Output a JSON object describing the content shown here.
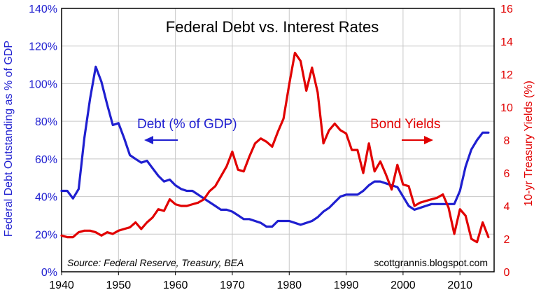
{
  "chart_data": {
    "type": "line",
    "title": "Federal Debt vs. Interest Rates",
    "source": "Source:  Federal Reserve, Treasury, BEA",
    "credit": "scottgrannis.blogspot.com",
    "xlabel": "",
    "ylabel_left": "Federal Debt Outstanding as % of GDP",
    "ylabel_right": "10-yr Treasury Yields (%)",
    "xlim": [
      1940,
      2016
    ],
    "ylim_left": [
      0,
      140
    ],
    "ylim_right": [
      0,
      16
    ],
    "x_ticks": [
      "1940",
      "1950",
      "1960",
      "1970",
      "1980",
      "1990",
      "2000",
      "2010"
    ],
    "x_tick_values": [
      1940,
      1950,
      1960,
      1970,
      1980,
      1990,
      2000,
      2010
    ],
    "y_left_ticks": [
      "0%",
      "20%",
      "40%",
      "60%",
      "80%",
      "100%",
      "120%",
      "140%"
    ],
    "y_left_tick_values": [
      0,
      20,
      40,
      60,
      80,
      100,
      120,
      140
    ],
    "y_right_ticks": [
      "0",
      "2",
      "4",
      "6",
      "8",
      "10",
      "12",
      "14",
      "16"
    ],
    "y_right_tick_values": [
      0,
      2,
      4,
      6,
      8,
      10,
      12,
      14,
      16
    ],
    "grid": true,
    "series": [
      {
        "name": "Debt (% of GDP)",
        "axis": "left",
        "color": "#1f1fd0",
        "annotation": "Debt (% of GDP)",
        "x": [
          1940,
          1941,
          1942,
          1943,
          1944,
          1945,
          1946,
          1947,
          1948,
          1949,
          1950,
          1951,
          1952,
          1953,
          1954,
          1955,
          1956,
          1957,
          1958,
          1959,
          1960,
          1961,
          1962,
          1963,
          1964,
          1965,
          1966,
          1967,
          1968,
          1969,
          1970,
          1971,
          1972,
          1973,
          1974,
          1975,
          1976,
          1977,
          1978,
          1979,
          1980,
          1981,
          1982,
          1983,
          1984,
          1985,
          1986,
          1987,
          1988,
          1989,
          1990,
          1991,
          1992,
          1993,
          1994,
          1995,
          1996,
          1997,
          1998,
          1999,
          2000,
          2001,
          2002,
          2003,
          2004,
          2005,
          2006,
          2007,
          2008,
          2009,
          2010,
          2011,
          2012,
          2013,
          2014,
          2015
        ],
        "values": [
          43,
          43,
          39,
          44,
          71,
          92,
          109,
          101,
          89,
          78,
          79,
          71,
          62,
          60,
          58,
          59,
          55,
          51,
          48,
          49,
          46,
          44,
          43,
          43,
          41,
          39,
          37,
          35,
          33,
          33,
          32,
          30,
          28,
          28,
          27,
          26,
          24,
          24,
          27,
          27,
          27,
          26,
          25,
          26,
          27,
          29,
          32,
          34,
          37,
          40,
          41,
          41,
          41,
          43,
          46,
          48,
          48,
          47,
          46,
          45,
          40,
          35,
          33,
          34,
          35,
          36,
          36,
          36,
          36,
          36,
          43,
          56,
          65,
          70,
          74,
          74
        ]
      },
      {
        "name": "Bond Yields",
        "axis": "right",
        "color": "#e10000",
        "annotation": "Bond Yields",
        "x": [
          1940,
          1941,
          1942,
          1943,
          1944,
          1945,
          1946,
          1947,
          1948,
          1949,
          1950,
          1951,
          1952,
          1953,
          1954,
          1955,
          1956,
          1957,
          1958,
          1959,
          1960,
          1961,
          1962,
          1963,
          1964,
          1965,
          1966,
          1967,
          1968,
          1969,
          1970,
          1971,
          1972,
          1973,
          1974,
          1975,
          1976,
          1977,
          1978,
          1979,
          1980,
          1981,
          1982,
          1983,
          1984,
          1985,
          1986,
          1987,
          1988,
          1989,
          1990,
          1991,
          1992,
          1993,
          1994,
          1995,
          1996,
          1997,
          1998,
          1999,
          2000,
          2001,
          2002,
          2003,
          2004,
          2005,
          2006,
          2007,
          2008,
          2009,
          2010,
          2011,
          2012,
          2013,
          2014,
          2015
        ],
        "values": [
          2.2,
          2.1,
          2.1,
          2.4,
          2.5,
          2.5,
          2.4,
          2.2,
          2.4,
          2.3,
          2.5,
          2.6,
          2.7,
          3.0,
          2.6,
          3.0,
          3.3,
          3.8,
          3.7,
          4.4,
          4.1,
          4.0,
          4.0,
          4.1,
          4.2,
          4.4,
          4.9,
          5.2,
          5.8,
          6.4,
          7.3,
          6.2,
          6.1,
          7.0,
          7.8,
          8.1,
          7.9,
          7.6,
          8.5,
          9.3,
          11.4,
          13.3,
          12.8,
          11.0,
          12.4,
          10.9,
          7.8,
          8.6,
          9.0,
          8.6,
          8.4,
          7.4,
          7.4,
          6.0,
          7.8,
          6.1,
          6.7,
          5.9,
          5.0,
          6.5,
          5.3,
          5.2,
          4.0,
          4.2,
          4.3,
          4.4,
          4.5,
          4.7,
          3.9,
          2.3,
          3.8,
          3.4,
          2.0,
          1.8,
          3.0,
          2.1
        ]
      }
    ]
  },
  "annotations": {
    "debt_label": "Debt (% of GDP)",
    "debt_arrow": "left",
    "yield_label": "Bond Yields",
    "yield_arrow": "right"
  }
}
